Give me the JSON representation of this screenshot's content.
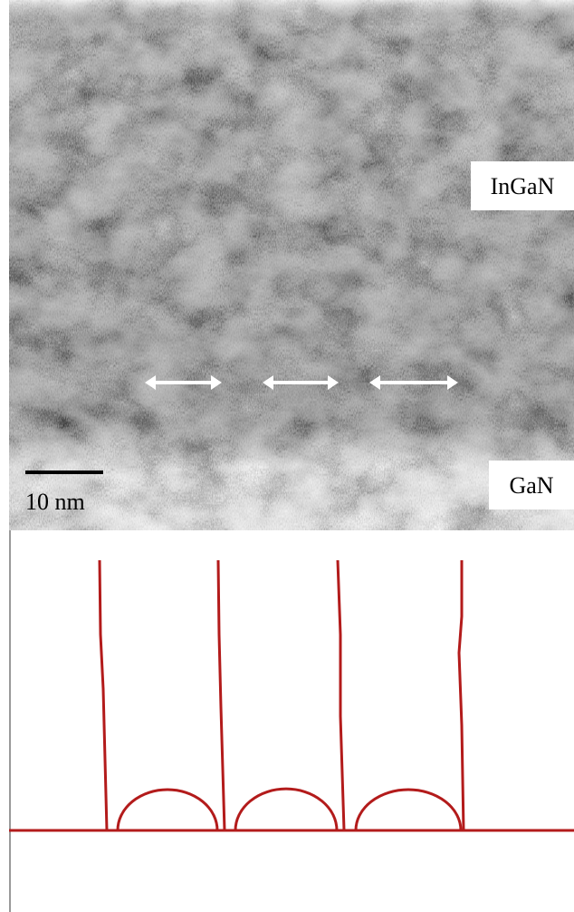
{
  "labels": {
    "ingan": "InGaN",
    "gan": "GaN",
    "scale_bar": "10 nm"
  }
}
